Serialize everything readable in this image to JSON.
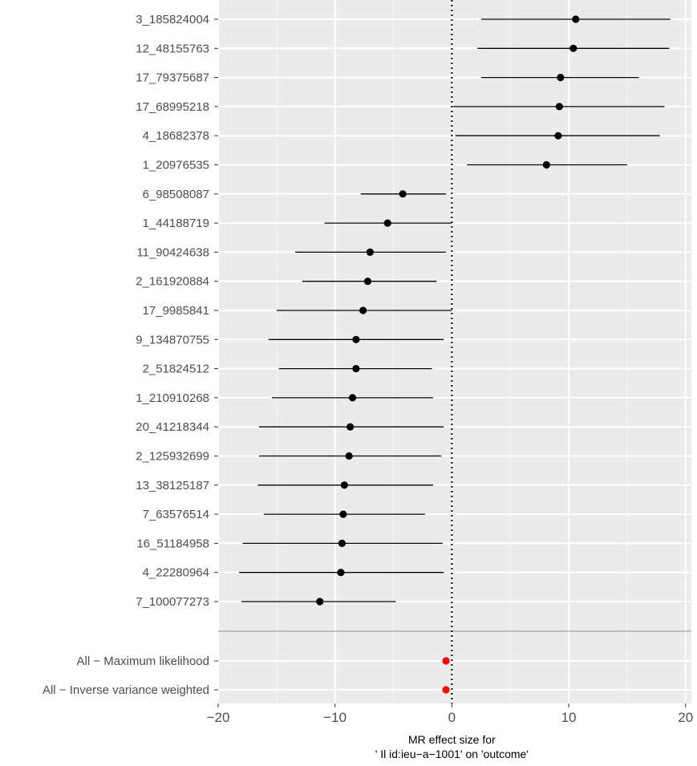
{
  "chart_data": {
    "type": "forest",
    "xlabel_line1": "MR effect size for",
    "xlabel_line2": "' Il id:ieu−a−1001' on 'outcome'",
    "xlim": [
      -20,
      20.5
    ],
    "xticks": [
      -20,
      -10,
      0,
      10,
      20
    ],
    "xtick_labels": [
      "−20",
      "−10",
      "0",
      "10",
      "20"
    ],
    "reference_line": 0,
    "snps": [
      {
        "label": "3_185824004",
        "b": 10.6,
        "lo": 2.5,
        "hi": 18.7
      },
      {
        "label": "12_48155763",
        "b": 10.4,
        "lo": 2.2,
        "hi": 18.6
      },
      {
        "label": "17_79375687",
        "b": 9.3,
        "lo": 2.5,
        "hi": 16.0
      },
      {
        "label": "17_68995218",
        "b": 9.2,
        "lo": 0.1,
        "hi": 18.2
      },
      {
        "label": "4_18682378",
        "b": 9.1,
        "lo": 0.3,
        "hi": 17.8
      },
      {
        "label": "1_20976535",
        "b": 8.1,
        "lo": 1.3,
        "hi": 15.0
      },
      {
        "label": "6_98508087",
        "b": -4.2,
        "lo": -7.8,
        "hi": -0.5
      },
      {
        "label": "1_44188719",
        "b": -5.5,
        "lo": -10.9,
        "hi": 0.0
      },
      {
        "label": "11_90424638",
        "b": -7.0,
        "lo": -13.4,
        "hi": -0.5
      },
      {
        "label": "2_161920884",
        "b": -7.2,
        "lo": -12.8,
        "hi": -1.3
      },
      {
        "label": "17_9985841",
        "b": -7.6,
        "lo": -15.0,
        "hi": 0.0
      },
      {
        "label": "9_134870755",
        "b": -8.2,
        "lo": -15.7,
        "hi": -0.7
      },
      {
        "label": "2_51824512",
        "b": -8.2,
        "lo": -14.8,
        "hi": -1.7
      },
      {
        "label": "1_210910268",
        "b": -8.5,
        "lo": -15.4,
        "hi": -1.6
      },
      {
        "label": "20_41218344",
        "b": -8.7,
        "lo": -16.5,
        "hi": -0.7
      },
      {
        "label": "2_125932699",
        "b": -8.8,
        "lo": -16.5,
        "hi": -0.9
      },
      {
        "label": "13_38125187",
        "b": -9.2,
        "lo": -16.6,
        "hi": -1.6
      },
      {
        "label": "7_63576514",
        "b": -9.3,
        "lo": -16.1,
        "hi": -2.3
      },
      {
        "label": "16_51184958",
        "b": -9.4,
        "lo": -17.9,
        "hi": -0.8
      },
      {
        "label": "4_22280964",
        "b": -9.5,
        "lo": -18.2,
        "hi": -0.7
      },
      {
        "label": "7_100077273",
        "b": -11.3,
        "lo": -18.0,
        "hi": -4.8
      }
    ],
    "summary": [
      {
        "label": "All − Maximum likelihood",
        "b": -0.5,
        "lo": -0.8,
        "hi": -0.2
      },
      {
        "label": "All − Inverse variance weighted",
        "b": -0.5,
        "lo": -0.8,
        "hi": -0.2
      }
    ],
    "colors": {
      "panel_bg": "#ebebeb",
      "grid_major": "#ffffff",
      "grid_minor": "#f5f5f5",
      "snp_point": "#000000",
      "summary_point": "#ff0000",
      "separator": "#bebebe",
      "ref_line": "#000000"
    }
  }
}
